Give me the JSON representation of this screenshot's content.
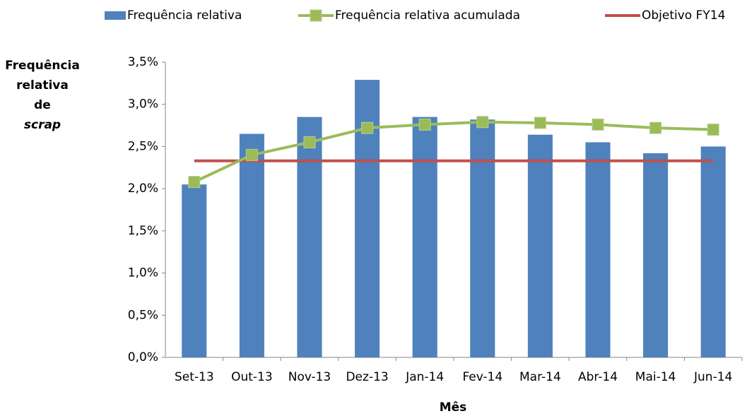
{
  "chart_data": {
    "type": "bar",
    "y_label": [
      "Frequência",
      "relativa",
      "de",
      "scrap"
    ],
    "x_label": "Mês",
    "categories": [
      "Set-13",
      "Out-13",
      "Nov-13",
      "Dez-13",
      "Jan-14",
      "Fev-14",
      "Mar-14",
      "Abr-14",
      "Mai-14",
      "Jun-14"
    ],
    "series": [
      {
        "name": "Frequência relativa",
        "type": "bar",
        "color": "#4f81bd",
        "values": [
          2.05,
          2.65,
          2.85,
          3.29,
          2.85,
          2.82,
          2.64,
          2.55,
          2.42,
          2.5
        ]
      },
      {
        "name": "Frequência relativa acumulada",
        "type": "line",
        "marker": "square",
        "color": "#9bbb59",
        "values": [
          2.08,
          2.4,
          2.55,
          2.72,
          2.76,
          2.79,
          2.78,
          2.76,
          2.72,
          2.7
        ]
      },
      {
        "name": "Objetivo FY14",
        "type": "line",
        "color": "#c0504d",
        "values": [
          2.33,
          2.33,
          2.33,
          2.33,
          2.33,
          2.33,
          2.33,
          2.33,
          2.33,
          2.33
        ]
      }
    ],
    "ylim": [
      0,
      3.5
    ],
    "yticks": [
      {
        "value": 0,
        "label": "0,0%"
      },
      {
        "value": 0.5,
        "label": "0,5%"
      },
      {
        "value": 1,
        "label": "1,0%"
      },
      {
        "value": 1.5,
        "label": "1,5%"
      },
      {
        "value": 2,
        "label": "2,0%"
      },
      {
        "value": 2.5,
        "label": "2,5%"
      },
      {
        "value": 3,
        "label": "3,0%"
      },
      {
        "value": 3.5,
        "label": "3,5%"
      }
    ],
    "legend": "top"
  }
}
